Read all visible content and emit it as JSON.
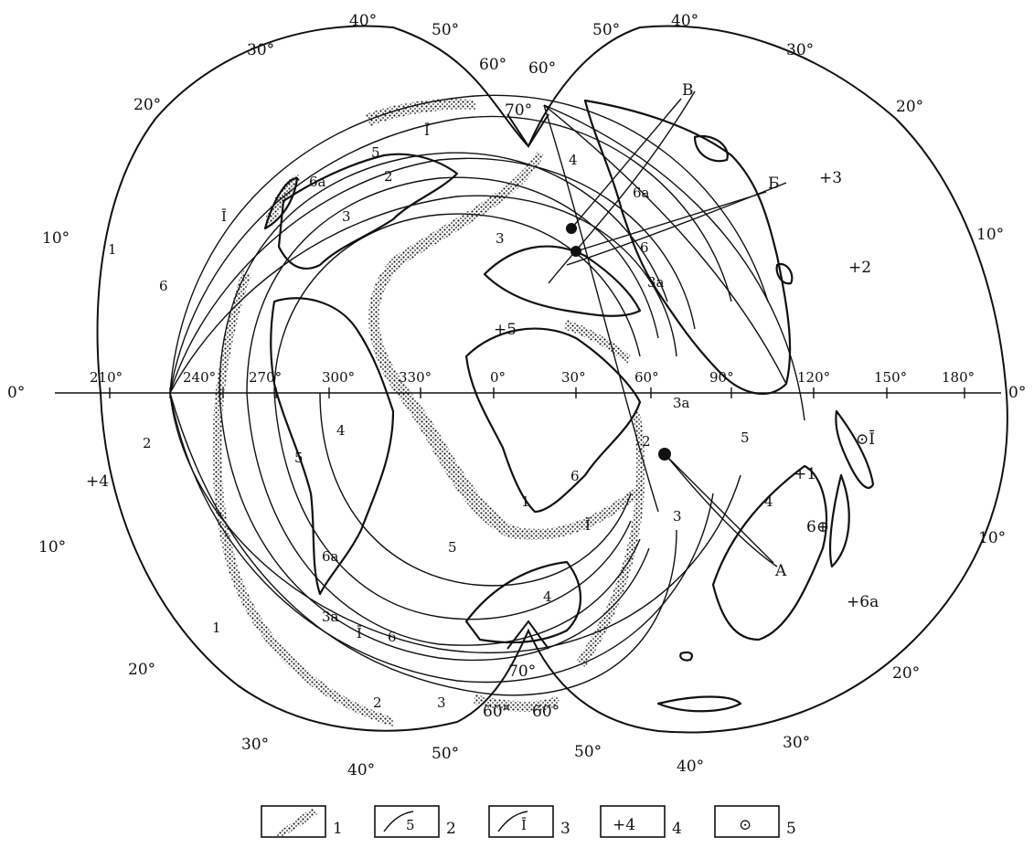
{
  "equator_labels": {
    "left": "0°",
    "right": "0°",
    "lons": [
      "210°",
      "240°",
      "270°",
      "300°",
      "330°",
      "0°",
      "30°",
      "60°",
      "90°",
      "120°",
      "150°",
      "180°"
    ]
  },
  "lat_labels_left": [
    "40°",
    "50°",
    "30°",
    "20°",
    "10°",
    "10°",
    "20°",
    "30°",
    "40°",
    "50°"
  ],
  "lat_labels_right": [
    "50°",
    "40°",
    "30°",
    "20°",
    "10°",
    "10°",
    "20°",
    "30°",
    "40°",
    "50°"
  ],
  "pole_labels": [
    "60°",
    "60°",
    "70°",
    "70°",
    "60°",
    "60°"
  ],
  "line_labels": {
    "top": [
      "5",
      "2",
      "3",
      "6a",
      "Ī",
      "4",
      "6a",
      "6",
      "3a",
      "3"
    ],
    "left": [
      "1",
      "6",
      "Ī",
      "2",
      "6a",
      "3a",
      "Ī",
      "6",
      "1",
      "2",
      "3"
    ],
    "middle": [
      "4",
      "5",
      "5",
      "1",
      "6",
      "Ī",
      "3",
      "3a",
      "2",
      "5",
      "4",
      "4",
      "B",
      "Б",
      "A"
    ]
  },
  "points": [
    {
      "sym": "+",
      "num": "3"
    },
    {
      "sym": "+",
      "num": "2"
    },
    {
      "sym": "+",
      "num": "5"
    },
    {
      "sym": "+",
      "num": "4"
    },
    {
      "sym": "+",
      "num": "1"
    },
    {
      "sym": "+",
      "num": "6a"
    },
    {
      "sym": "⊙",
      "num": "Ī"
    },
    {
      "sym": "⊕",
      "num": "6"
    }
  ],
  "legend": [
    {
      "label": "1",
      "inner": ""
    },
    {
      "label": "2",
      "inner": "5"
    },
    {
      "label": "3",
      "inner": "Ī"
    },
    {
      "label": "4",
      "inner": "+4"
    },
    {
      "label": "5",
      "inner": "⊙"
    }
  ]
}
